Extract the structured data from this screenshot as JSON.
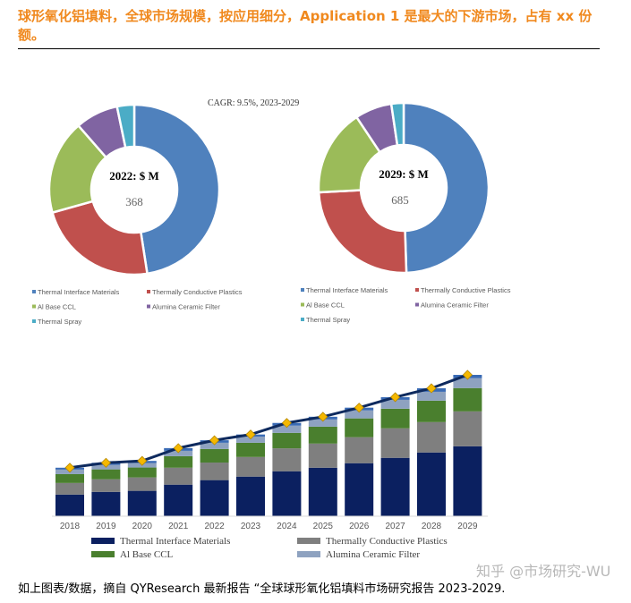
{
  "title": "球形氧化铝填料，全球市场规模，按应用细分，Application 1 是最大的下游市场，占有 xx 份额。",
  "footer": "如上图表/数据，摘自 QYResearch 最新报告 “全球球形氧化铝填料市场研究报告 2023-2029.",
  "watermark": "知乎 @市场研究-WU",
  "chart_data": [
    {
      "type": "pie",
      "style": "donut",
      "annotation": "CAGR:   9.5%, 2023-2029",
      "center_label": "2022: $ M",
      "center_value": "368",
      "categories": [
        "Thermal Interface Materials",
        "Thermally Conductive Plastics",
        "Al Base CCL",
        "Alumina Ceramic Filter",
        "Thermal Spray"
      ],
      "values": [
        175,
        85,
        66,
        30,
        12
      ],
      "colors": [
        "#4f81bd",
        "#c0504d",
        "#9bbb59",
        "#8064a2",
        "#4bacc6"
      ],
      "legend": "bottom"
    },
    {
      "type": "pie",
      "style": "donut",
      "center_label": "2029: $ M",
      "center_value": "685",
      "categories": [
        "Thermal Interface Materials",
        "Thermally Conductive Plastics",
        "Al Base CCL",
        "Alumina Ceramic Filter",
        "Thermal Spray"
      ],
      "values": [
        339,
        169,
        113,
        48,
        16
      ],
      "colors": [
        "#4f81bd",
        "#c0504d",
        "#9bbb59",
        "#8064a2",
        "#4bacc6"
      ],
      "legend": "bottom"
    },
    {
      "type": "bar",
      "stacked": true,
      "categories": [
        "2018",
        "2019",
        "2020",
        "2021",
        "2022",
        "2023",
        "2024",
        "2025",
        "2026",
        "2027",
        "2028",
        "2029"
      ],
      "series": [
        {
          "name": "Thermal Interface Materials",
          "color": "#0b2060",
          "values": [
            105,
            118,
            123,
            153,
            175,
            192,
            218,
            235,
            257,
            283,
            309,
            339
          ]
        },
        {
          "name": "Thermally Conductive Plastics",
          "color": "#7f7f7f",
          "values": [
            56,
            61,
            65,
            82,
            85,
            95,
            111,
            117,
            126,
            143,
            147,
            169
          ]
        },
        {
          "name": "Al Base CCL",
          "color": "#4a7f2e",
          "values": [
            43,
            48,
            48,
            56,
            66,
            69,
            75,
            82,
            91,
            95,
            104,
            113
          ]
        },
        {
          "name": "Alumina Ceramic Filter",
          "color": "#8ea2c0",
          "values": [
            22,
            22,
            22,
            26,
            30,
            30,
            35,
            35,
            39,
            43,
            43,
            48
          ]
        },
        {
          "color": "#3a6bb5",
          "values": [
            9,
            10,
            10,
            13,
            12,
            10,
            13,
            13,
            13,
            13,
            17,
            16
          ]
        }
      ],
      "total_line": {
        "color": "#0e2a5e",
        "marker_color": "#f5b800",
        "values": [
          235,
          259,
          268,
          330,
          368,
          396,
          452,
          482,
          526,
          577,
          620,
          685
        ]
      },
      "ylim": [
        0,
        700
      ],
      "grid": false,
      "legend": "bottom"
    }
  ]
}
